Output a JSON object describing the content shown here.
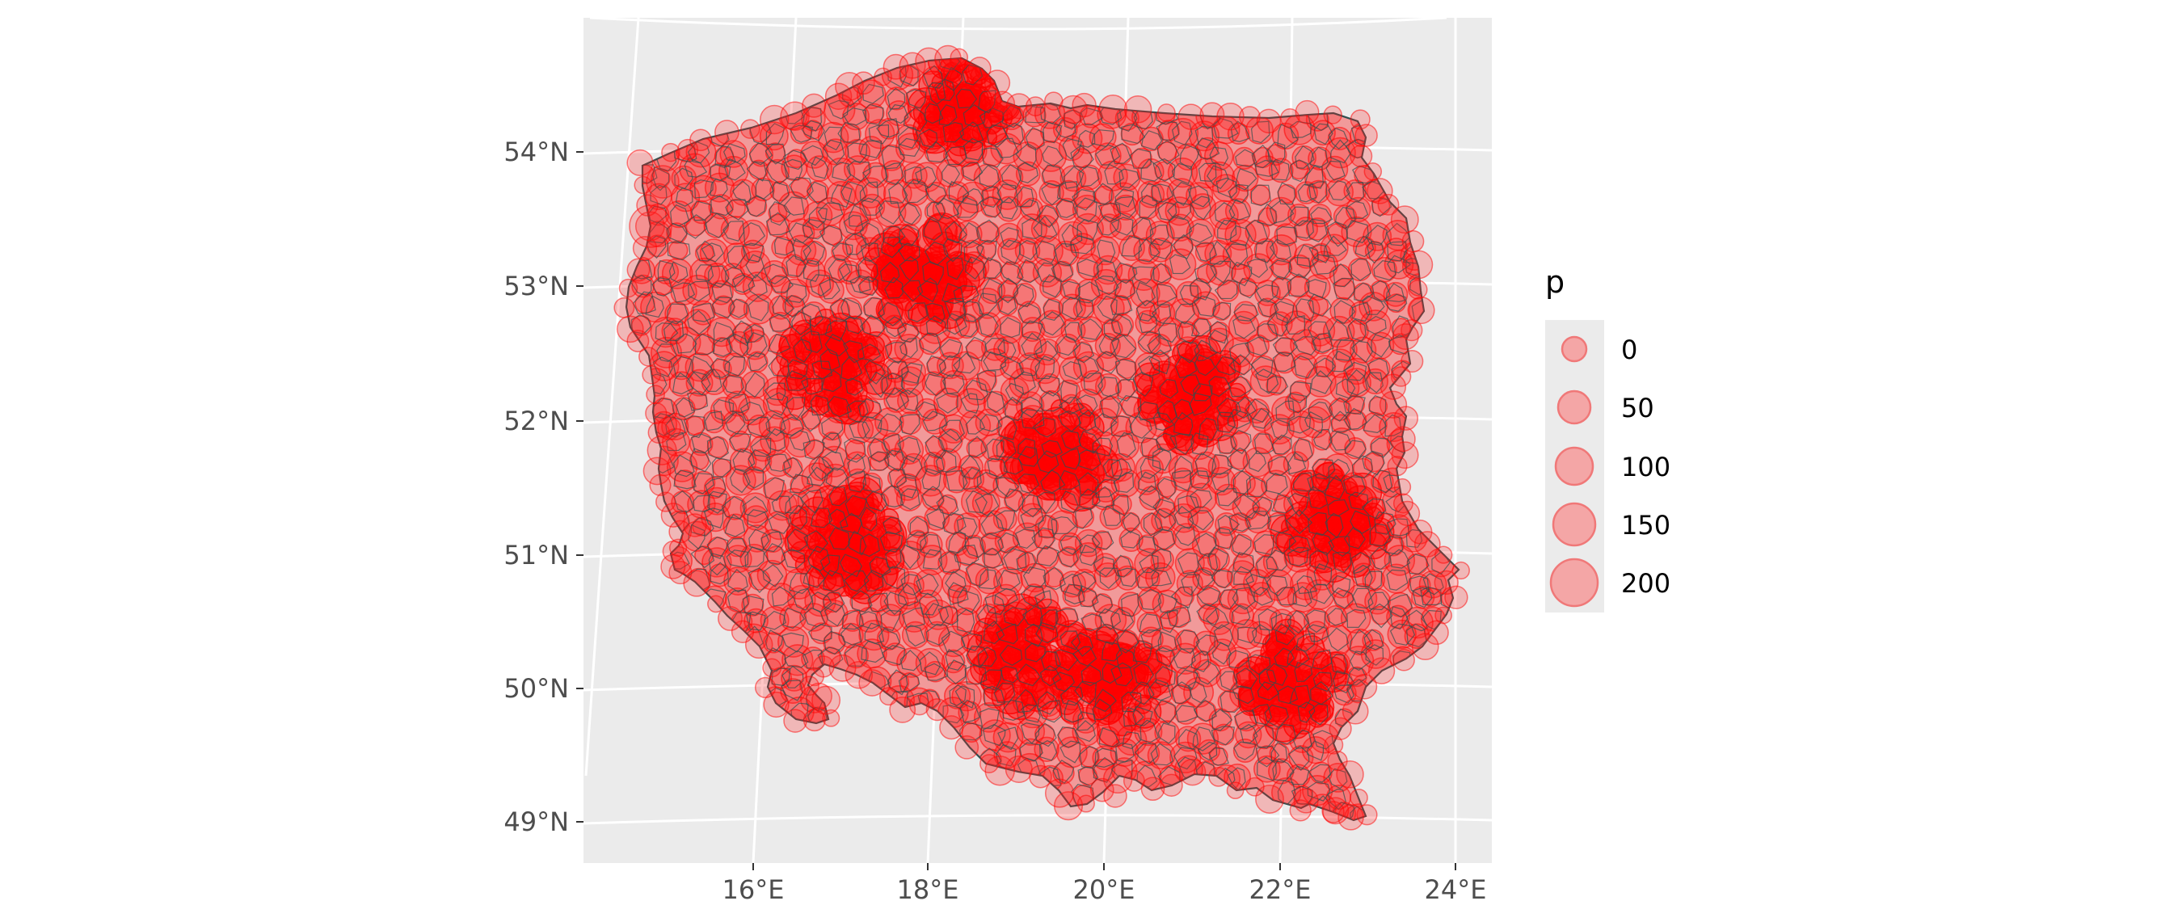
{
  "map": {
    "type": "choropleth-bubble-map",
    "region_boundaries": "gmina",
    "bubble_color": "#ff0000",
    "boundary_color": "#2f4f4f",
    "panel_color": "#ebebeb",
    "grid_color": "#ffffff",
    "y_axis": {
      "ticks": [
        "49°N",
        "50°N",
        "51°N",
        "52°N",
        "53°N",
        "54°N"
      ],
      "values": [
        49,
        50,
        51,
        52,
        53,
        54
      ]
    },
    "x_axis": {
      "ticks": [
        "16°E",
        "18°E",
        "20°E",
        "22°E",
        "24°E"
      ],
      "values": [
        16,
        18,
        20,
        22,
        24
      ]
    }
  },
  "legend": {
    "title": "p",
    "items": [
      {
        "label": "0",
        "value": 0
      },
      {
        "label": "50",
        "value": 50
      },
      {
        "label": "100",
        "value": 100
      },
      {
        "label": "150",
        "value": 150
      },
      {
        "label": "200",
        "value": 200
      }
    ]
  },
  "chart_data": {
    "type": "scatter",
    "geometry": "bubble",
    "size_variable": "p",
    "size_breaks": [
      0,
      50,
      100,
      150,
      200
    ],
    "xlim": [
      14.0,
      24.2
    ],
    "ylim": [
      48.9,
      54.9
    ],
    "x_ticks": [
      16,
      18,
      20,
      22,
      24
    ],
    "y_ticks": [
      49,
      50,
      51,
      52,
      53,
      54
    ],
    "dense_clusters": [
      {
        "lon": 21.0,
        "lat": 52.2
      },
      {
        "lon": 19.9,
        "lat": 50.05
      },
      {
        "lon": 19.0,
        "lat": 50.25
      },
      {
        "lon": 16.95,
        "lat": 52.4
      },
      {
        "lon": 18.6,
        "lat": 54.4
      },
      {
        "lon": 17.0,
        "lat": 51.1
      },
      {
        "lon": 19.45,
        "lat": 51.75
      },
      {
        "lon": 22.55,
        "lat": 51.25
      },
      {
        "lon": 22.0,
        "lat": 50.05
      },
      {
        "lon": 18.0,
        "lat": 53.1
      }
    ]
  }
}
